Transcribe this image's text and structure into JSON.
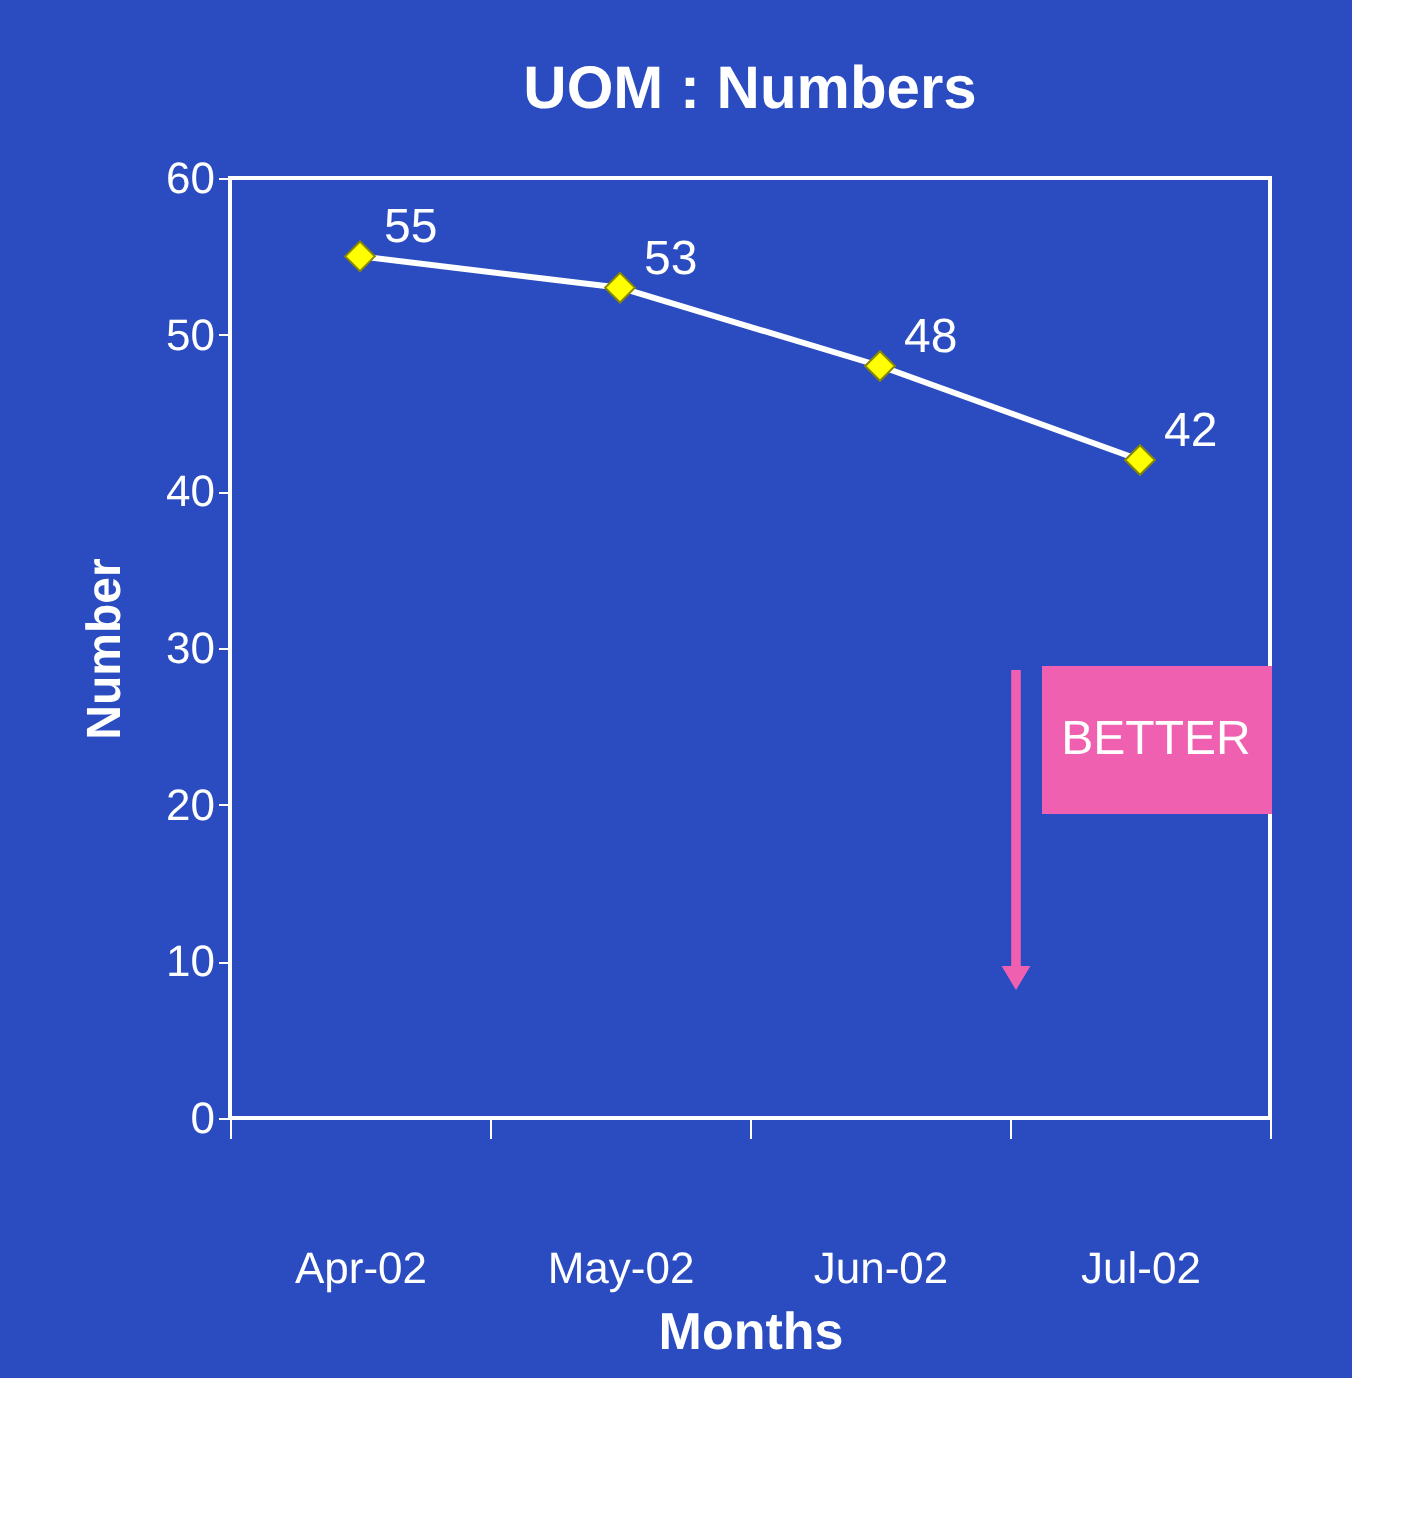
{
  "chart_data": {
    "type": "line",
    "title": "UOM : Numbers",
    "xlabel": "Months",
    "ylabel": "Number",
    "categories": [
      "Apr-02",
      "May-02",
      "Jun-02",
      "Jul-02"
    ],
    "series": [
      {
        "color": "#ffffff",
        "colors": [
          "#ffff00",
          "#ffff00",
          "#ffff00",
          "#ffff00"
        ],
        "values": [
          55,
          53,
          48,
          42
        ]
      }
    ],
    "ylim": [
      0,
      60
    ],
    "yticks": [
      0,
      10,
      20,
      30,
      40,
      50,
      60
    ],
    "data_labels": true,
    "marker": "diamond",
    "line_style": "solid",
    "grid": false,
    "annotations": [
      "BETTER"
    ]
  }
}
